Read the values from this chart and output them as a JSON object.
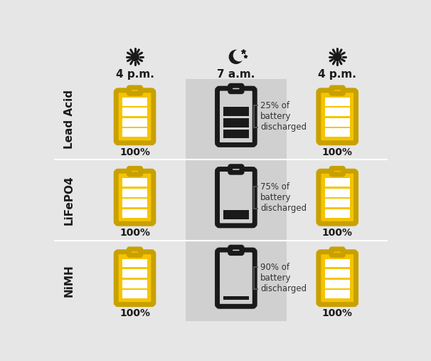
{
  "bg_color": "#e6e6e6",
  "mid_col_bg": "#d0d0d0",
  "row_bg_alt": "#dcdcdc",
  "yellow": "#F5C400",
  "yellow_border": "#C8A000",
  "black": "#1a1a1a",
  "white": "#ffffff",
  "text_dark": "#222222",
  "text_mid": "#555555",
  "row_labels": [
    "Lead Acid",
    "LiFePO4",
    "NiMH"
  ],
  "col_labels": [
    "4 p.m.",
    "7 a.m.",
    "4 p.m."
  ],
  "discharge_labels": [
    "25% of\nbattery\ndischarged",
    "75% of\nbattery\ndischarged",
    "90% of\nbattery\ndischarged"
  ],
  "pct_label": "100%",
  "filled_bars_yellow": 4,
  "filled_bars_black": [
    3,
    1,
    0
  ],
  "fig_w": 6.06,
  "fig_h": 5.07,
  "dpi": 100
}
